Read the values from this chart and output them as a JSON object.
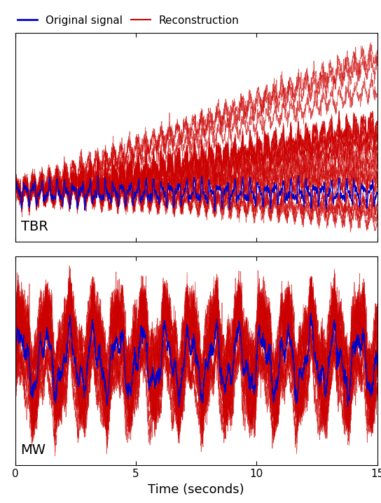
{
  "xlabel": "Time (seconds)",
  "x_min": 0,
  "x_max": 15,
  "legend_labels": [
    "Original signal",
    "Reconstruction"
  ],
  "label_tbr": "TBR",
  "label_mw": "MW",
  "signal_color": "#0000cc",
  "recon_color": "#cc0000",
  "signal_lw": 1.0,
  "recon_lw": 0.5,
  "recon_alpha": 0.7,
  "tick_fontsize": 11,
  "label_fontsize": 13,
  "legend_fontsize": 11,
  "n_points": 2000,
  "n_recon_tbr": 15,
  "n_recon_mw": 15
}
